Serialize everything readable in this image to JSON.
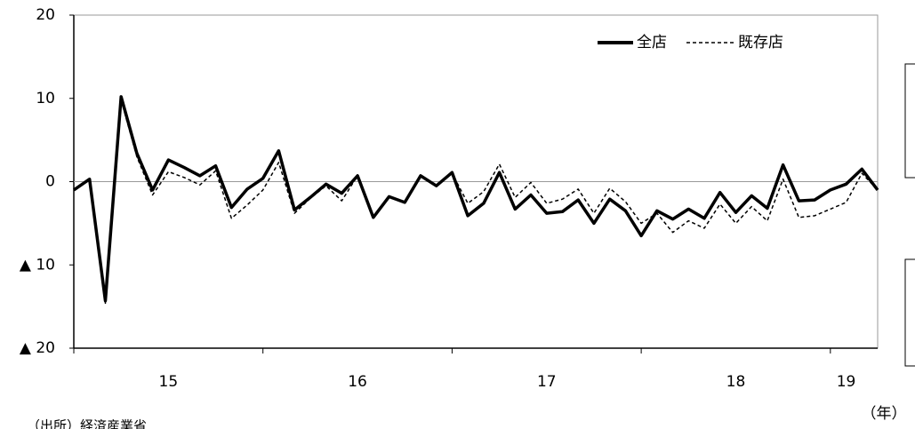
{
  "chart_data": {
    "type": "line",
    "categories": [
      null,
      null,
      null,
      null,
      null,
      null,
      "15",
      null,
      null,
      null,
      null,
      null,
      null,
      null,
      null,
      null,
      null,
      null,
      "16",
      null,
      null,
      null,
      null,
      null,
      null,
      null,
      null,
      null,
      null,
      null,
      "17",
      null,
      null,
      null,
      null,
      null,
      null,
      null,
      null,
      null,
      null,
      null,
      "18",
      null,
      null,
      null,
      null,
      null,
      null,
      "19",
      null,
      null
    ],
    "series": [
      {
        "name": "全店",
        "color": "#000000",
        "style": "solid",
        "values": [
          -1.0,
          0.3,
          -14.3,
          10.2,
          3.4,
          -1.0,
          2.6,
          1.7,
          0.7,
          1.9,
          -3.1,
          -0.9,
          0.4,
          3.7,
          -3.4,
          -1.9,
          -0.3,
          -1.4,
          0.7,
          -4.3,
          -1.8,
          -2.5,
          0.7,
          -0.5,
          1.1,
          -4.1,
          -2.6,
          1.1,
          -3.3,
          -1.6,
          -3.8,
          -3.6,
          -2.2,
          -5.0,
          -2.1,
          -3.5,
          -6.5,
          -3.5,
          -4.5,
          -3.3,
          -4.4,
          -1.3,
          -3.7,
          -1.7,
          -3.2,
          2.0,
          -2.3,
          -2.2,
          -1.0,
          -0.3,
          1.5,
          -1.0
        ]
      },
      {
        "name": "既存店",
        "color": "#000000",
        "style": "dashed",
        "values": [
          -1.0,
          0.3,
          -14.6,
          9.8,
          3.0,
          -1.6,
          1.2,
          0.5,
          -0.4,
          1.3,
          -4.4,
          -2.8,
          -1.0,
          2.3,
          -3.8,
          -2.0,
          -0.5,
          -2.3,
          0.7,
          -4.3,
          -1.8,
          -2.5,
          0.7,
          -0.5,
          1.0,
          -2.6,
          -1.2,
          2.1,
          -1.9,
          -0.1,
          -2.6,
          -2.1,
          -0.9,
          -3.8,
          -0.8,
          -2.4,
          -5.0,
          -3.8,
          -6.1,
          -4.7,
          -5.6,
          -2.7,
          -5.0,
          -3.0,
          -4.7,
          0.3,
          -4.3,
          -4.1,
          -3.3,
          -2.5,
          1.0,
          -1.0
        ]
      }
    ],
    "ylim": [
      -20,
      20
    ],
    "yticks": [
      {
        "value": -20,
        "label": "▲ 20"
      },
      {
        "value": -10,
        "label": "▲ 10"
      },
      0,
      10,
      20
    ],
    "x_unit": "（年）",
    "source": "（出所）経済産業省"
  }
}
